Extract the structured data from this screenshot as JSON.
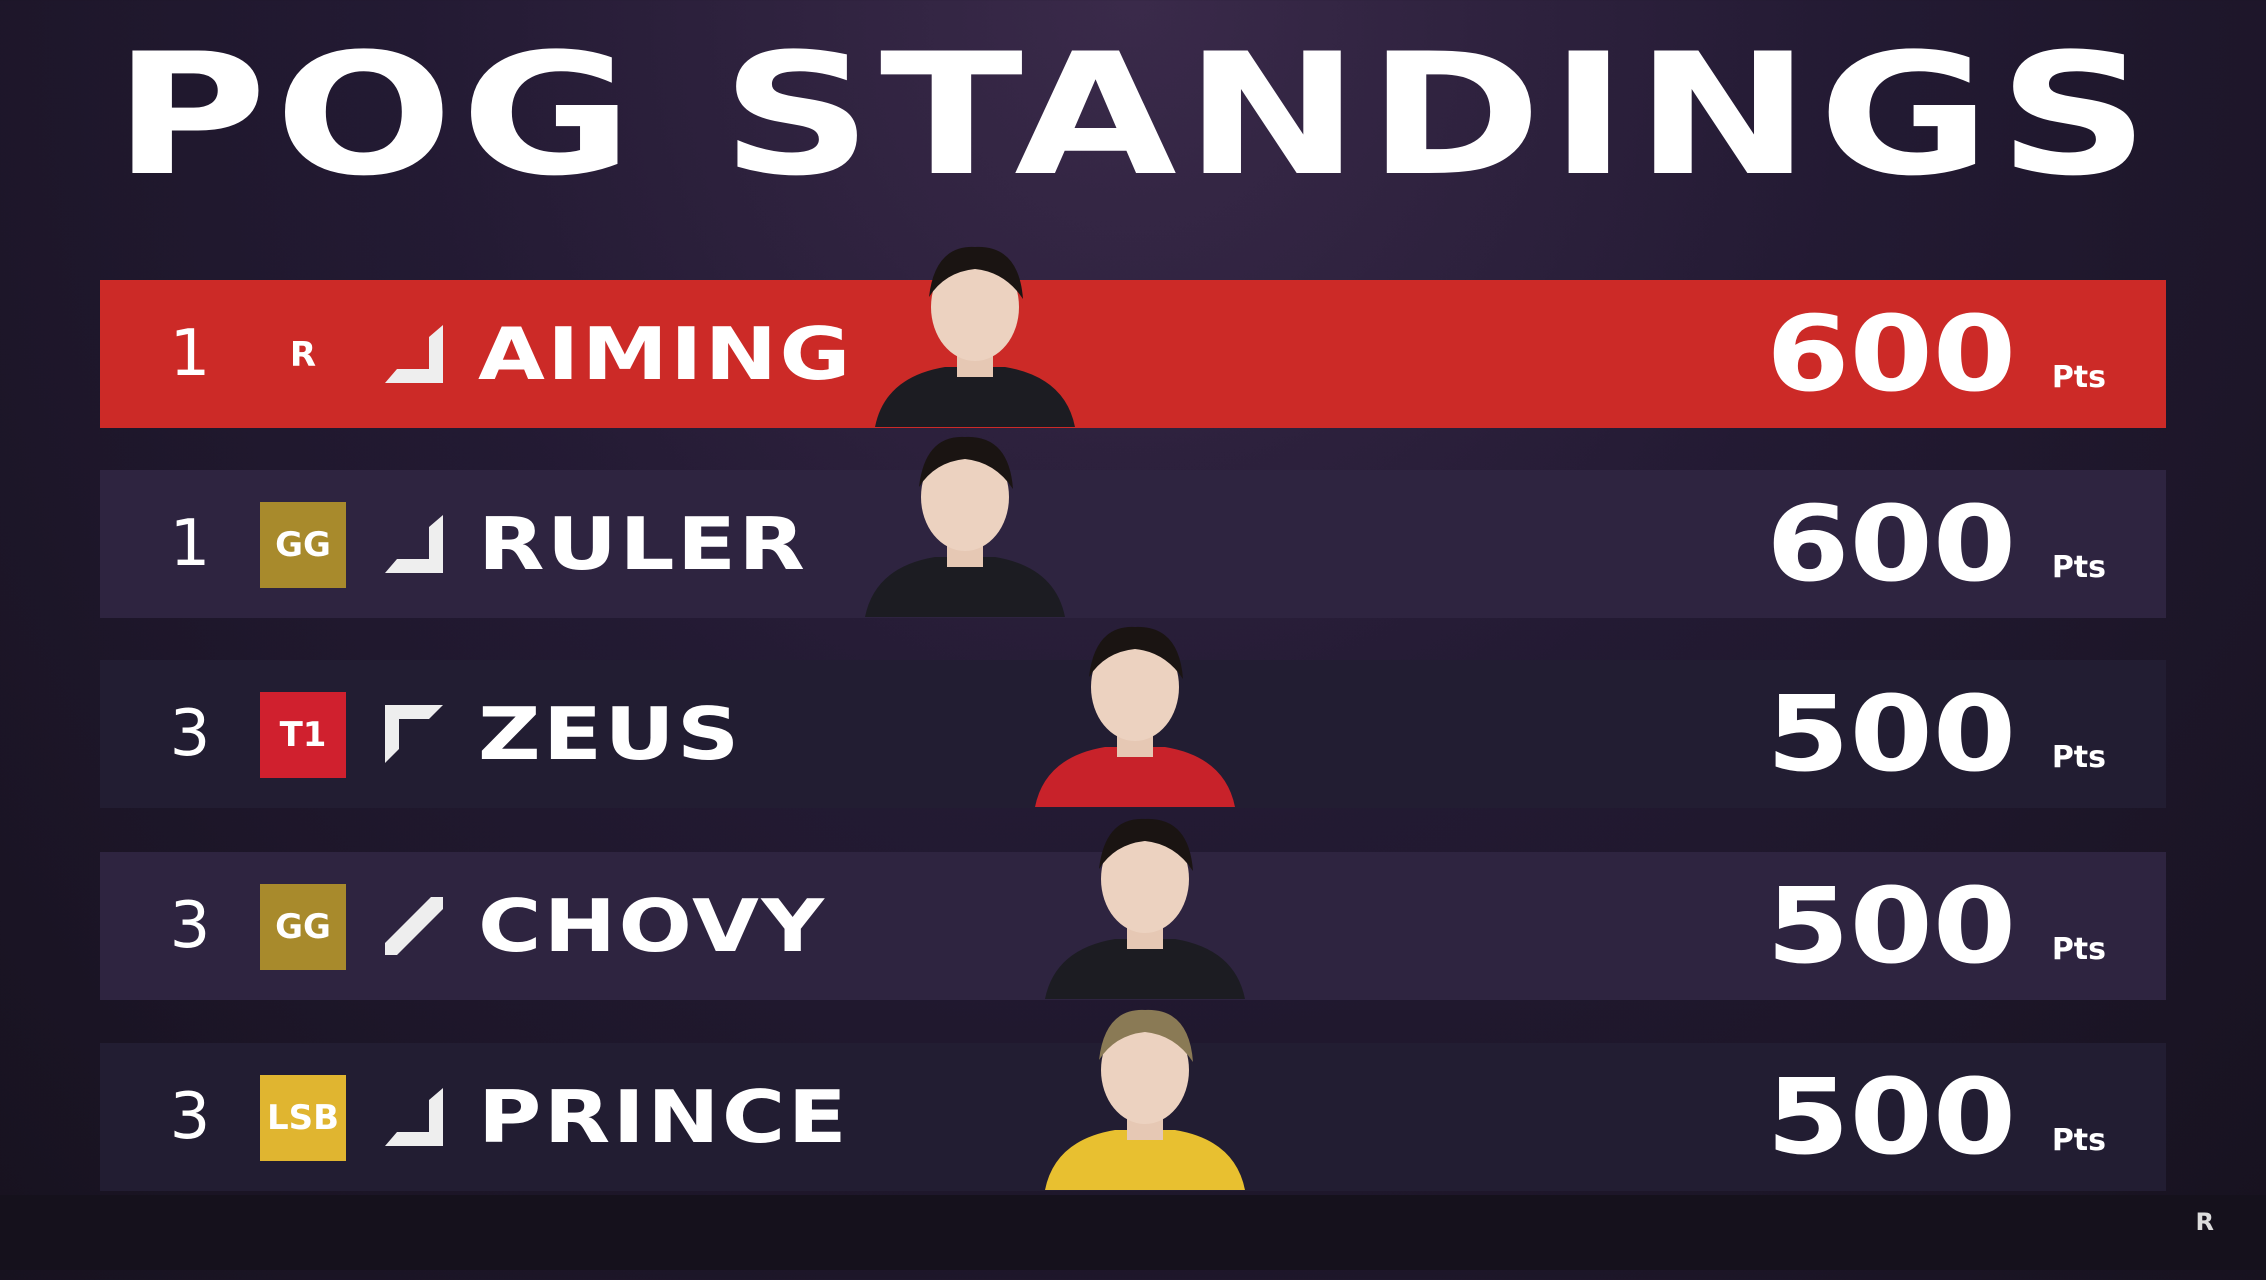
{
  "title": "POG STANDINGS",
  "unit": "Pts",
  "watermark": "R",
  "colors": {
    "highlight": "#cc2a27",
    "row": "#2e2440",
    "row_alt": "#221d32"
  },
  "standings": [
    {
      "rank": "1",
      "team_logo": "KT Rolster",
      "logo_text": "R",
      "role_icon": "bot-lane-icon",
      "player": "AIMING",
      "points": "600",
      "highlight": true
    },
    {
      "rank": "1",
      "team_logo": "Gen.G",
      "logo_text": "GG",
      "role_icon": "bot-lane-icon",
      "player": "RULER",
      "points": "600"
    },
    {
      "rank": "3",
      "team_logo": "T1",
      "logo_text": "T1",
      "role_icon": "top-lane-icon",
      "player": "ZEUS",
      "points": "500"
    },
    {
      "rank": "3",
      "team_logo": "Gen.G",
      "logo_text": "GG",
      "role_icon": "mid-lane-icon",
      "player": "CHOVY",
      "points": "500"
    },
    {
      "rank": "3",
      "team_logo": "LSB",
      "logo_text": "LSB",
      "role_icon": "bot-lane-icon",
      "player": "PRINCE",
      "points": "500"
    }
  ]
}
